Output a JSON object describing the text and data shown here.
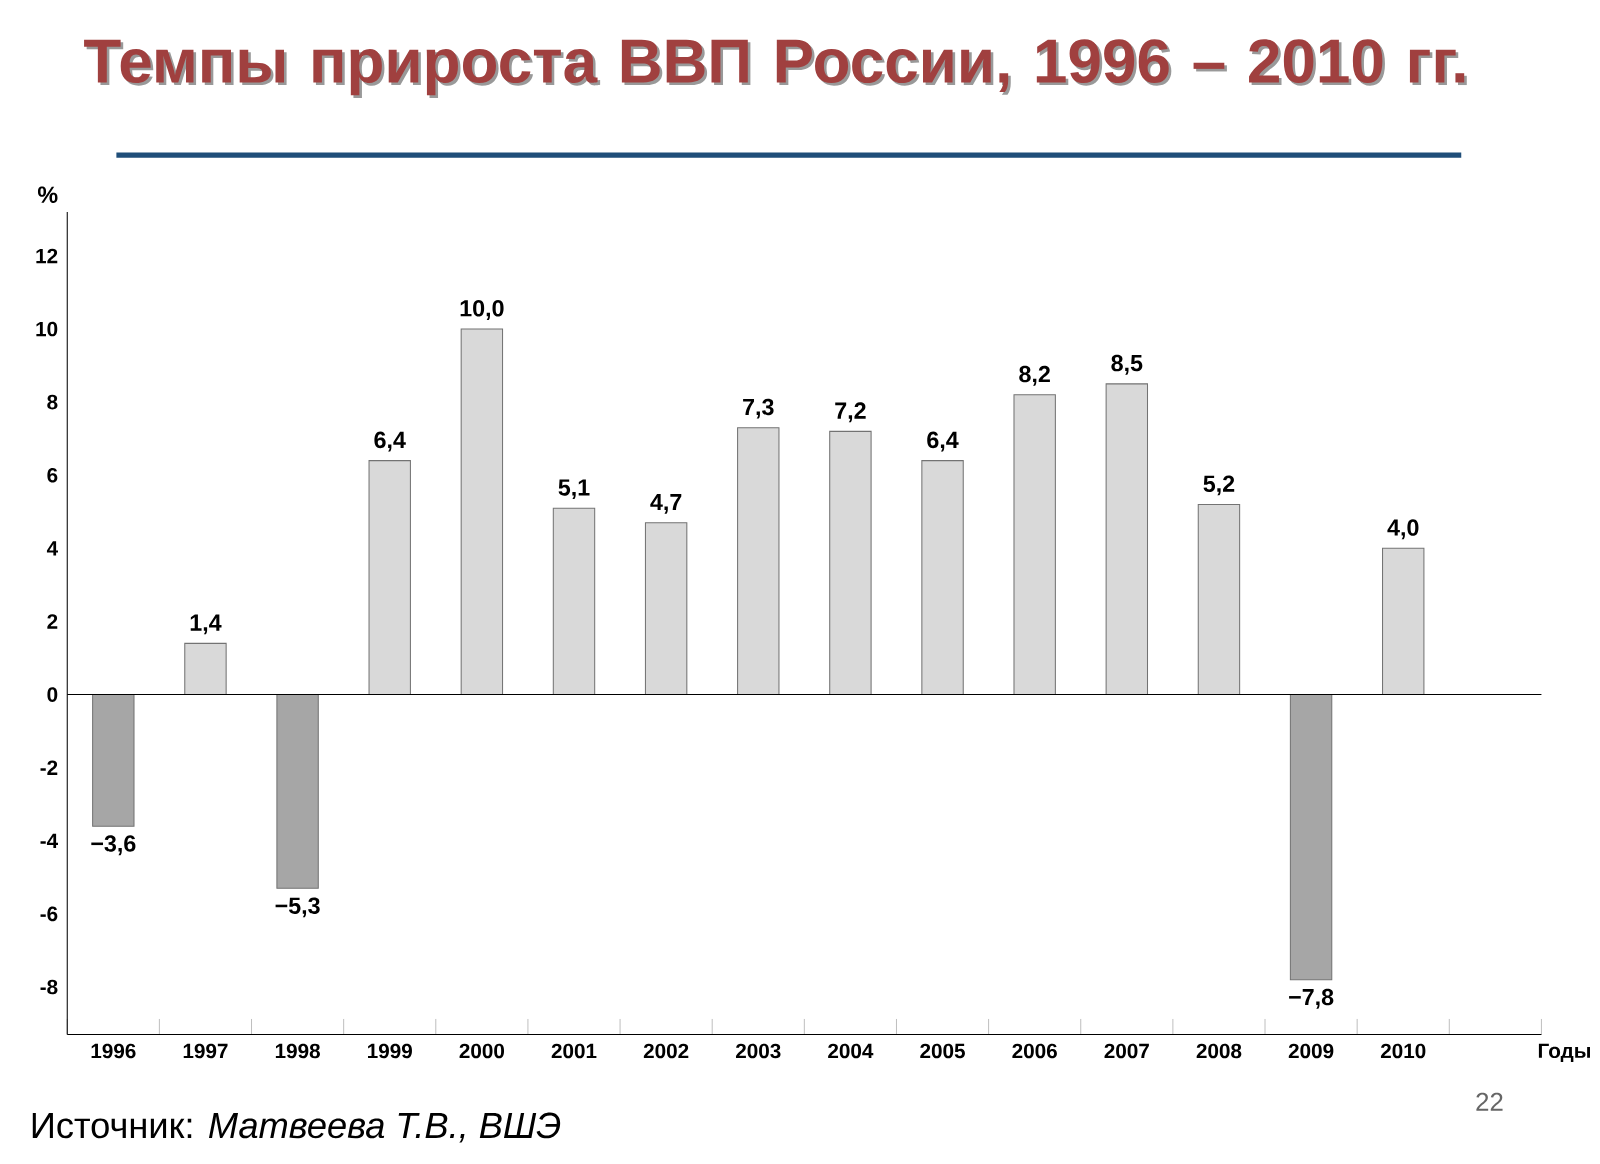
{
  "chart_data": {
    "type": "bar",
    "title": "Темпы прироста ВВП России, 1996 – 2010 гг.",
    "ylabel": "%",
    "xlabel": "Годы",
    "categories": [
      "1996",
      "1997",
      "1998",
      "1999",
      "2000",
      "2001",
      "2002",
      "2003",
      "2004",
      "2005",
      "2006",
      "2007",
      "2008",
      "2009",
      "2010"
    ],
    "values": [
      -3.6,
      1.4,
      -5.3,
      6.4,
      10.0,
      5.1,
      4.7,
      7.3,
      7.2,
      6.4,
      8.2,
      8.5,
      5.2,
      -7.8,
      4.0
    ],
    "colors": [
      "#a6a6a6",
      "#d9d9d9",
      "#a6a6a6",
      "#d9d9d9",
      "#d9d9d9",
      "#d9d9d9",
      "#d9d9d9",
      "#d9d9d9",
      "#d9d9d9",
      "#d9d9d9",
      "#d9d9d9",
      "#d9d9d9",
      "#d9d9d9",
      "#a6a6a6",
      "#d9d9d9"
    ],
    "value_labels": [
      "−3,6",
      "1,4",
      "−5,3",
      "6,4",
      "10,0",
      "5,1",
      "4,7",
      "7,3",
      "7,2",
      "6,4",
      "8,2",
      "8,5",
      "5,2",
      "−7,8",
      "4,0"
    ],
    "ylim": [
      -9.3,
      13.2
    ],
    "yticks": [
      -8,
      -6,
      -4,
      -2,
      0,
      2,
      4,
      6,
      8,
      10,
      12
    ],
    "ref_lines": [
      {
        "axis": "y",
        "value": 0
      }
    ],
    "annotations": [
      "Источник: *Матвеева Т.В., ВШЭ*",
      "22"
    ]
  }
}
